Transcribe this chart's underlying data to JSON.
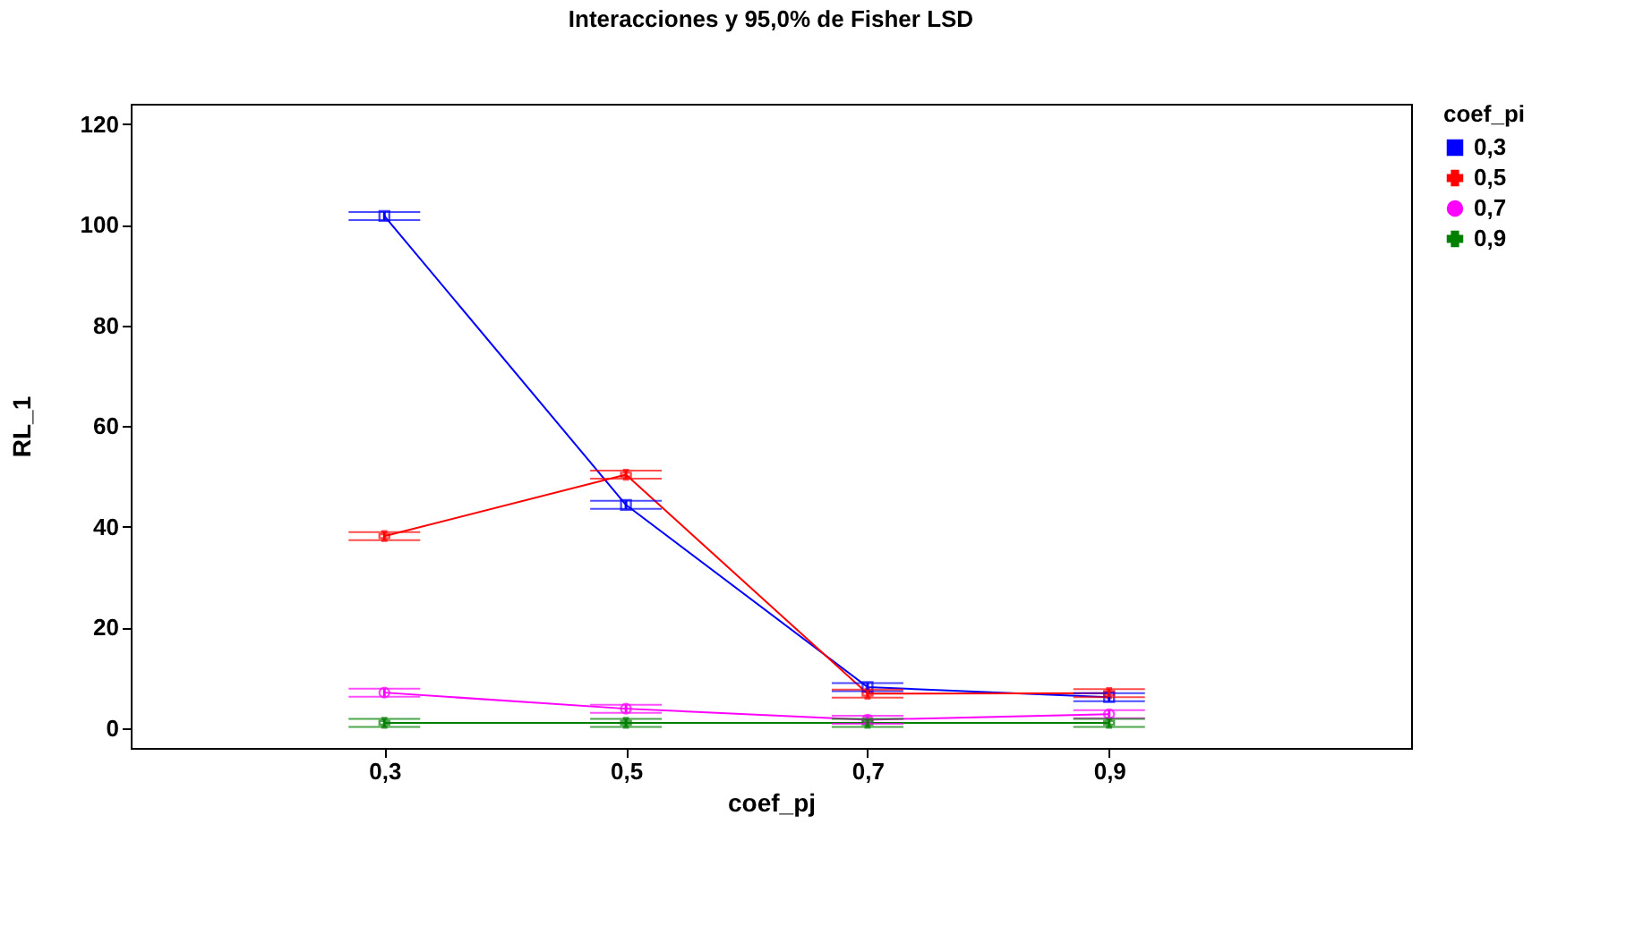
{
  "chart_data": {
    "type": "line",
    "title": "Interacciones y 95,0% de Fisher LSD",
    "xlabel": "coef_pj",
    "ylabel": "RL_1",
    "legend_title": "coef_pi",
    "x": [
      0.3,
      0.5,
      0.7,
      0.9
    ],
    "xlim": [
      0.09,
      1.15
    ],
    "xticks": [
      {
        "value": 0.3,
        "label": "0,3"
      },
      {
        "value": 0.5,
        "label": "0,5"
      },
      {
        "value": 0.7,
        "label": "0,7"
      },
      {
        "value": 0.9,
        "label": "0,9"
      }
    ],
    "ylim": [
      -4,
      124
    ],
    "yticks": [
      0,
      20,
      40,
      60,
      80,
      100,
      120
    ],
    "grid": false,
    "legend": "top right",
    "series": [
      {
        "name": "0,3",
        "color": "#0000ff",
        "marker": "square",
        "values": [
          101.7,
          44.3,
          8.1,
          6.1
        ],
        "errors": [
          0.8,
          0.8,
          0.8,
          0.8
        ]
      },
      {
        "name": "0,5",
        "color": "#ff0000",
        "marker": "cross",
        "values": [
          38.1,
          50.3,
          6.8,
          6.9
        ],
        "errors": [
          0.8,
          0.8,
          0.8,
          0.8
        ]
      },
      {
        "name": "0,7",
        "color": "#ff00ff",
        "marker": "circle",
        "values": [
          7.0,
          3.8,
          1.6,
          2.7
        ],
        "errors": [
          0.8,
          0.8,
          0.8,
          0.8
        ]
      },
      {
        "name": "0,9",
        "color": "#008000",
        "marker": "cross",
        "values": [
          1.0,
          1.0,
          1.0,
          1.0
        ],
        "errors": [
          0.8,
          0.8,
          0.8,
          0.8
        ]
      }
    ]
  }
}
